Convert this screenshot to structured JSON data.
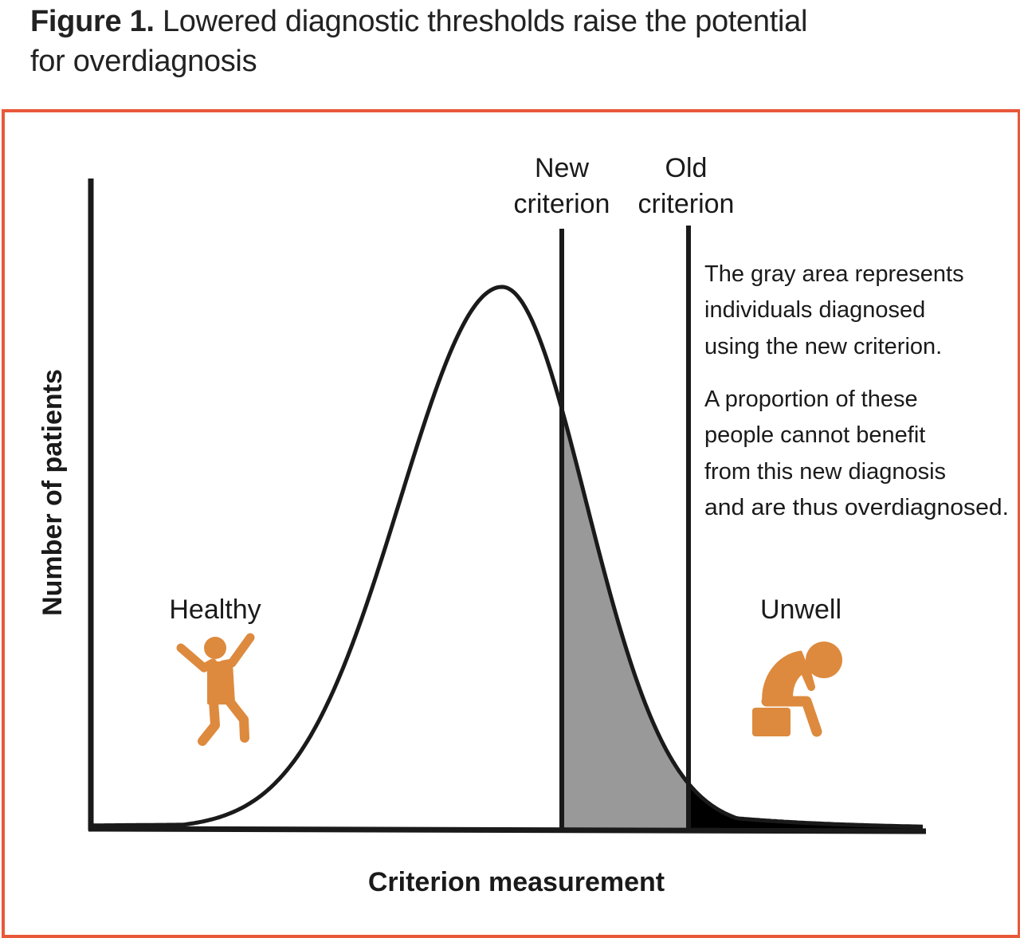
{
  "title": {
    "label": "Figure 1.",
    "text": "Lowered diagnostic thresholds raise the potential for overdiagnosis",
    "line1": "Lowered diagnostic thresholds raise the potential",
    "line2": "for overdiagnosis"
  },
  "axes": {
    "ylabel": "Number of patients",
    "xlabel": "Criterion measurement"
  },
  "criteria": {
    "new": {
      "line1": "New",
      "line2": "criterion"
    },
    "old": {
      "line1": "Old",
      "line2": "criterion"
    }
  },
  "regions": {
    "healthy": "Healthy",
    "unwell": "Unwell"
  },
  "annotation": {
    "paragraph1": [
      "The gray area represents",
      "individuals diagnosed",
      "using the new criterion."
    ],
    "paragraph2": [
      "A proportion of these",
      "people cannot benefit",
      "from this new diagnosis",
      "and are thus overdiagnosed."
    ]
  },
  "colors": {
    "frame": "#e8583a",
    "icon": "#dd8a3e",
    "gray_area": "#999999",
    "black_area": "#000000",
    "curve": "#1a1a1a"
  },
  "icons": {
    "healthy": "happy-person-icon",
    "unwell": "sad-seated-person-icon"
  }
}
